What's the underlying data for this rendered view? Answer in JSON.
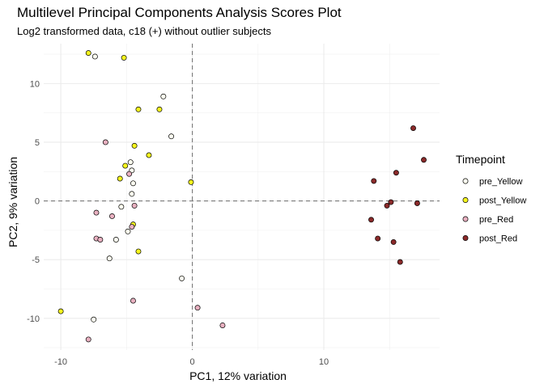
{
  "chart_data": {
    "type": "scatter",
    "title": "Multilevel Principal Components Analysis Scores Plot",
    "subtitle": "Log2 transformed data, c18 (+) without outlier subjects",
    "xlabel": "PC1, 12% variation",
    "ylabel": "PC2, 9% variation",
    "xlim": [
      -11.3,
      18.8
    ],
    "ylim": [
      -12.7,
      13.4
    ],
    "x_ticks": [
      -10,
      0,
      10
    ],
    "y_ticks": [
      -10,
      -5,
      0,
      5,
      10
    ],
    "x_tick_labels": [
      "-10",
      "0",
      "10"
    ],
    "y_tick_labels": [
      "-10",
      "-5",
      "0",
      "5",
      "10"
    ],
    "grid": true,
    "reference_lines": {
      "x": 0,
      "y": 0,
      "style": "dashed"
    },
    "legend": {
      "title": "Timepoint",
      "position": "right"
    },
    "series": [
      {
        "name": "pre_Yellow",
        "color": "#fffff0",
        "points": [
          [
            -7.4,
            12.3
          ],
          [
            -2.2,
            8.9
          ],
          [
            -1.6,
            5.5
          ],
          [
            -4.7,
            3.3
          ],
          [
            -4.6,
            2.6
          ],
          [
            -4.5,
            1.5
          ],
          [
            -4.6,
            0.6
          ],
          [
            -5.4,
            -0.5
          ],
          [
            -4.9,
            -2.6
          ],
          [
            -5.8,
            -3.3
          ],
          [
            -6.3,
            -4.9
          ],
          [
            -0.8,
            -6.6
          ],
          [
            -7.5,
            -10.1
          ]
        ]
      },
      {
        "name": "post_Yellow",
        "color": "#f5f51e",
        "points": [
          [
            -7.9,
            12.6
          ],
          [
            -5.2,
            12.2
          ],
          [
            -4.1,
            7.8
          ],
          [
            -2.5,
            7.8
          ],
          [
            -4.4,
            4.7
          ],
          [
            -3.3,
            3.9
          ],
          [
            -5.1,
            3.0
          ],
          [
            -5.5,
            1.9
          ],
          [
            -0.1,
            1.6
          ],
          [
            -4.5,
            -2.0
          ],
          [
            -4.1,
            -4.3
          ],
          [
            -10.0,
            -9.4
          ]
        ]
      },
      {
        "name": "pre_Red",
        "color": "#e8b0c0",
        "points": [
          [
            -6.6,
            5.0
          ],
          [
            -4.8,
            2.3
          ],
          [
            -4.4,
            -0.4
          ],
          [
            -7.3,
            -1.0
          ],
          [
            -6.1,
            -1.3
          ],
          [
            -7.3,
            -3.2
          ],
          [
            -7.0,
            -3.3
          ],
          [
            -4.6,
            -2.2
          ],
          [
            -4.5,
            -8.5
          ],
          [
            0.4,
            -9.1
          ],
          [
            2.3,
            -10.6
          ],
          [
            -7.9,
            -11.8
          ]
        ]
      },
      {
        "name": "post_Red",
        "color": "#8b2a2a",
        "points": [
          [
            16.8,
            6.2
          ],
          [
            17.6,
            3.5
          ],
          [
            15.5,
            2.4
          ],
          [
            13.8,
            1.7
          ],
          [
            15.1,
            -0.1
          ],
          [
            17.1,
            -0.2
          ],
          [
            14.8,
            -0.4
          ],
          [
            13.6,
            -1.6
          ],
          [
            14.1,
            -3.2
          ],
          [
            15.3,
            -3.5
          ],
          [
            15.8,
            -5.2
          ]
        ]
      }
    ]
  }
}
